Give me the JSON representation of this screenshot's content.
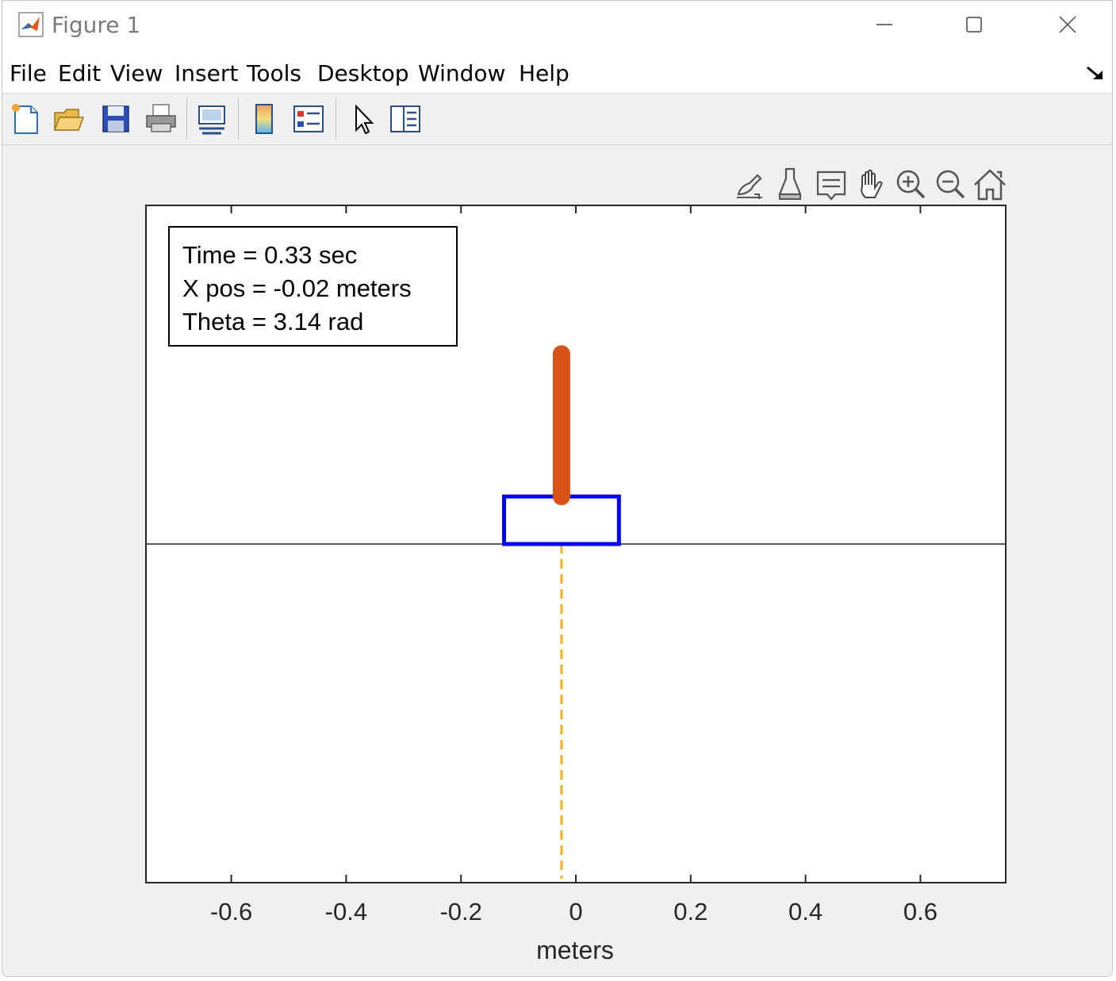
{
  "window": {
    "title": "Figure 1"
  },
  "menu": [
    {
      "label": "File"
    },
    {
      "label": "Edit"
    },
    {
      "label": "View"
    },
    {
      "label": "Insert"
    },
    {
      "label": "Tools"
    },
    {
      "label": "Desktop"
    },
    {
      "label": "Window"
    },
    {
      "label": "Help"
    }
  ],
  "toolbar": {
    "icons": [
      "new-figure-icon",
      "open-file-icon",
      "save-icon",
      "print-icon",
      "link-plot-icon",
      "colorbar-icon",
      "legend-icon",
      "edit-plot-arrow-icon",
      "property-inspector-icon"
    ]
  },
  "axes_toolbar": {
    "icons": [
      "brush-data-icon",
      "data-cursor-icon",
      "data-tips-icon",
      "pan-hand-icon",
      "zoom-in-icon",
      "zoom-out-icon",
      "home-icon"
    ]
  },
  "info": {
    "time": "Time = 0.33 sec",
    "xpos": "X pos = -0.02 meters",
    "theta": "Theta = 3.14 rad"
  },
  "chart_data": {
    "type": "line",
    "xlabel": "meters",
    "xlim": [
      -0.75,
      0.75
    ],
    "ylim": [
      -1.0,
      1.0
    ],
    "xticks": [
      -0.6,
      -0.4,
      -0.2,
      0,
      0.2,
      0.4,
      0.6
    ],
    "xtick_labels": [
      "-0.6",
      "-0.4",
      "-0.2",
      "0",
      "0.2",
      "0.4",
      "0.6"
    ],
    "ground_y": 0,
    "cart": {
      "x_center": -0.025,
      "width": 0.2,
      "y_bottom": 0.0,
      "height": 0.14,
      "color": "#0000ff"
    },
    "pendulum": {
      "x0": -0.025,
      "y0": 0.14,
      "x1": -0.025,
      "y1": 0.56,
      "color": "#d95319"
    },
    "reference_line": {
      "x": -0.025,
      "y_from": -1.0,
      "y_to": 0.0,
      "color": "#edb120",
      "style": "dashed"
    }
  }
}
